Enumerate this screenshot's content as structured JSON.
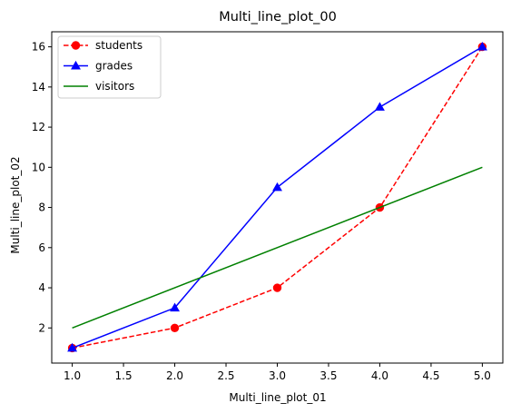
{
  "chart_data": {
    "type": "line",
    "title": "Multi_line_plot_00",
    "xlabel": "Multi_line_plot_01",
    "ylabel": "Multi_line_plot_02",
    "xlim": [
      0.8,
      5.2
    ],
    "ylim": [
      0.25,
      16.75
    ],
    "xticks": [
      1.0,
      1.5,
      2.0,
      2.5,
      3.0,
      3.5,
      4.0,
      4.5,
      5.0
    ],
    "xtick_labels": [
      "1.0",
      "1.5",
      "2.0",
      "2.5",
      "3.0",
      "3.5",
      "4.0",
      "4.5",
      "5.0"
    ],
    "yticks": [
      2,
      4,
      6,
      8,
      10,
      12,
      14,
      16
    ],
    "ytick_labels": [
      "2",
      "4",
      "6",
      "8",
      "10",
      "12",
      "14",
      "16"
    ],
    "grid": false,
    "legend_position": "top-left",
    "series": [
      {
        "name": "students",
        "x": [
          1,
          2,
          3,
          4,
          5
        ],
        "y": [
          1,
          2,
          4,
          8,
          16
        ],
        "color": "#ff0000",
        "line_style": "dashed",
        "marker": "circle"
      },
      {
        "name": "grades",
        "x": [
          1,
          2,
          3,
          4,
          5
        ],
        "y": [
          1,
          3,
          9,
          13,
          16
        ],
        "color": "#0000ff",
        "line_style": "solid",
        "marker": "triangle"
      },
      {
        "name": "visitors",
        "x": [
          1,
          5
        ],
        "y": [
          2,
          10
        ],
        "color": "#008000",
        "line_style": "solid",
        "marker": "none"
      }
    ]
  }
}
